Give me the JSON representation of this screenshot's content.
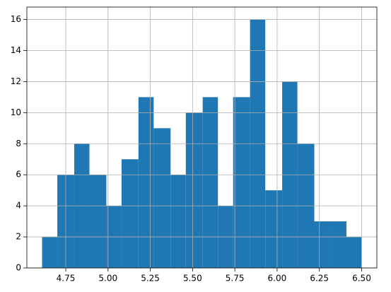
{
  "chart_data": {
    "type": "histogram",
    "bins": [
      4.61,
      4.7,
      4.8,
      4.89,
      4.99,
      5.08,
      5.18,
      5.27,
      5.37,
      5.46,
      5.56,
      5.65,
      5.74,
      5.84,
      5.93,
      6.03,
      6.12,
      6.22,
      6.31,
      6.41,
      6.5
    ],
    "values": [
      2,
      6,
      8,
      6,
      4,
      7,
      11,
      9,
      6,
      10,
      11,
      4,
      11,
      16,
      5,
      12,
      8,
      3,
      3,
      2
    ],
    "color": "#1f77b4",
    "xlim": [
      4.52,
      6.59
    ],
    "xticks": [
      4.75,
      {
        "value": 5.0,
        "label": "5.00"
      },
      5.25,
      {
        "value": 5.5,
        "label": "5.50"
      },
      5.75,
      {
        "value": 6.0,
        "label": "6.00"
      },
      6.25,
      {
        "value": 6.5,
        "label": "6.50"
      }
    ],
    "ylim": [
      0,
      16.8
    ],
    "yticks": [
      0,
      2,
      4,
      6,
      8,
      10,
      12,
      14,
      16
    ],
    "grid": true
  }
}
